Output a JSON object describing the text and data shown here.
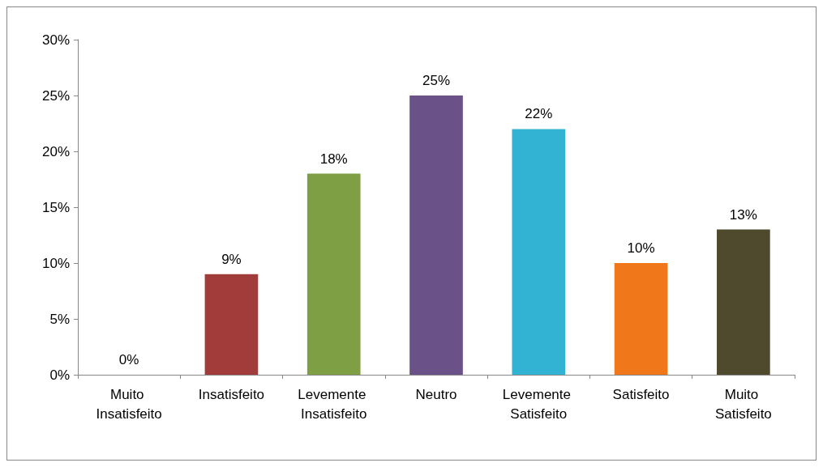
{
  "chart_data": {
    "type": "bar",
    "categories": [
      "Muito Insatisfeito",
      "Insatisfeito",
      "Levemente Insatisfeito",
      "Neutro",
      "Levemente Satisfeito",
      "Satisfeito",
      "Muito Satisfeito"
    ],
    "values": [
      0,
      9,
      18,
      25,
      22,
      10,
      13
    ],
    "colors": [
      "#4a7ebb",
      "#a23c3a",
      "#7f9f45",
      "#6a5187",
      "#33b3d3",
      "#f0781a",
      "#4f4a2e"
    ],
    "value_labels": [
      "0%",
      "9%",
      "18%",
      "25%",
      "22%",
      "10%",
      "13%"
    ],
    "ylim": [
      0,
      30
    ],
    "yticks": [
      {
        "value": 0,
        "label": "0%"
      },
      {
        "value": 5,
        "label": "5%"
      },
      {
        "value": 10,
        "label": "10%"
      },
      {
        "value": 15,
        "label": "15%"
      },
      {
        "value": 20,
        "label": "20%"
      },
      {
        "value": 25,
        "label": "25%"
      },
      {
        "value": 30,
        "label": "30%"
      }
    ],
    "grid": false
  }
}
